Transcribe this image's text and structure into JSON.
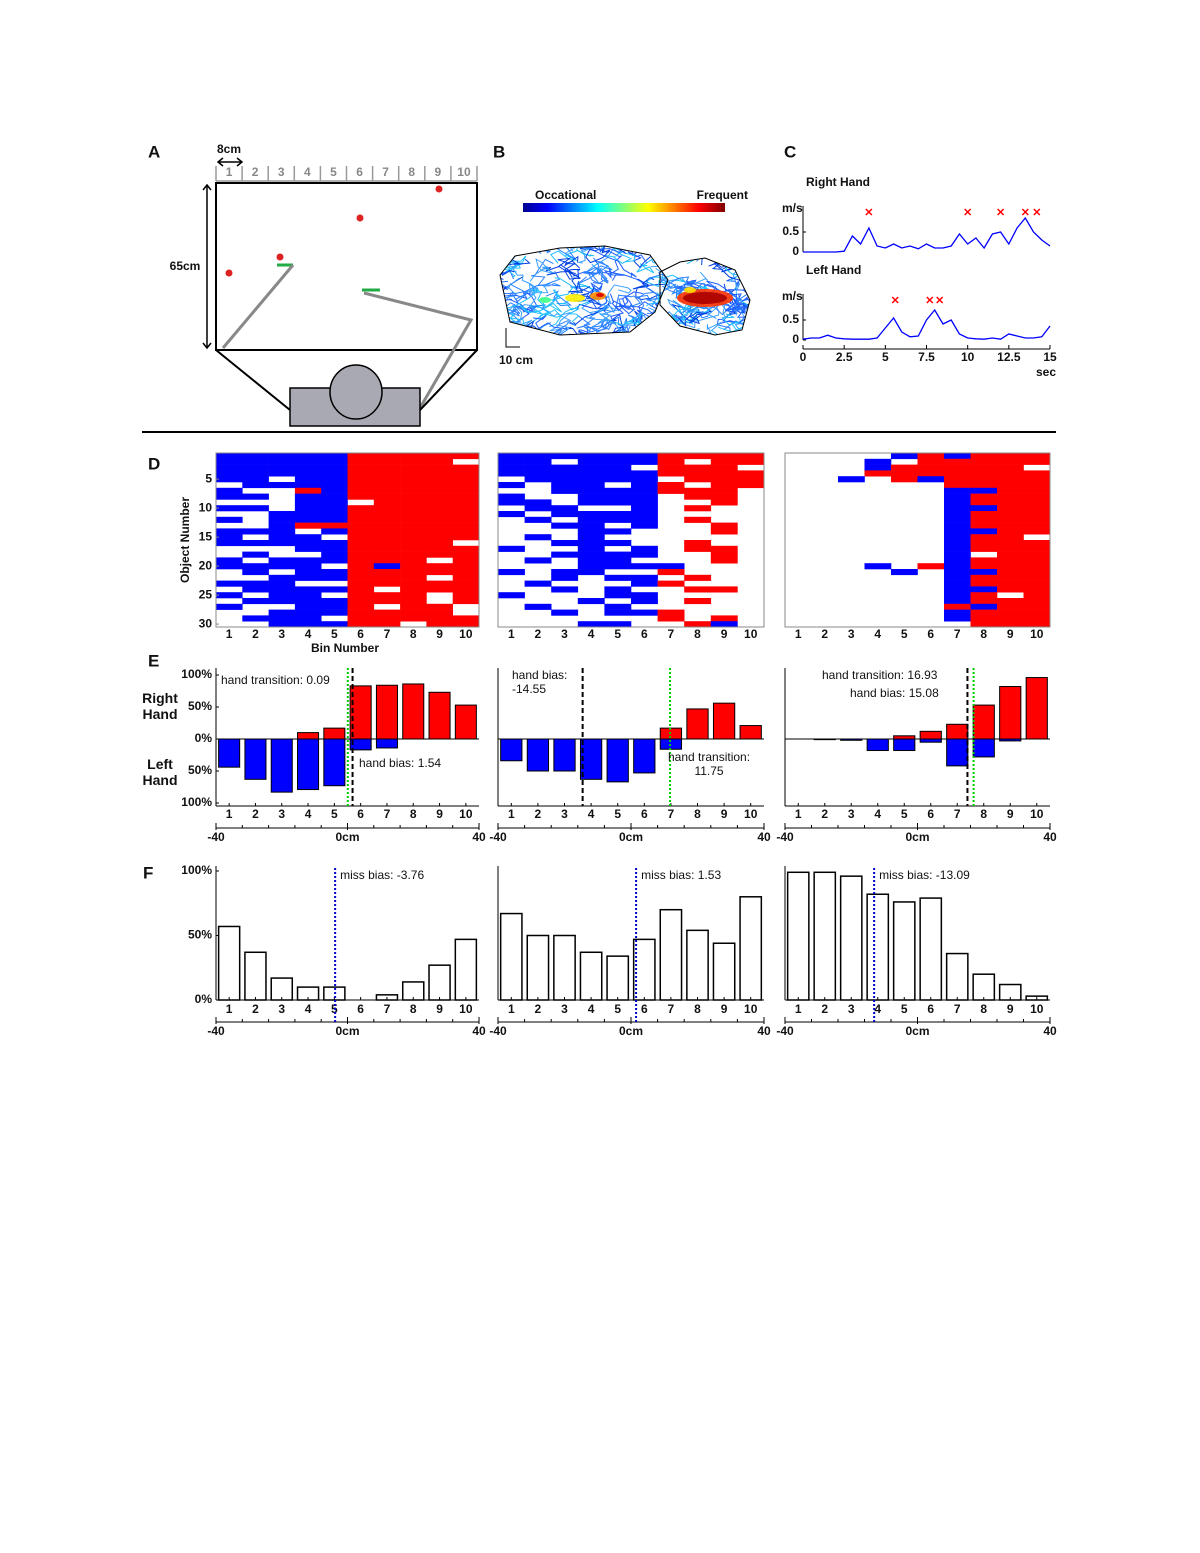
{
  "panel_a": {
    "letter": "A",
    "width_label": "8cm",
    "height_label": "65cm",
    "bins": [
      1,
      2,
      3,
      4,
      5,
      6,
      7,
      8,
      9,
      10
    ]
  },
  "panel_b": {
    "letter": "B",
    "colorbar_low": "Occational",
    "colorbar_high": "Frequent",
    "scale_label": "10 cm"
  },
  "chart_data": [
    {
      "type": "line",
      "panel": "C",
      "title": "Right Hand",
      "ylabel": "m/s",
      "color": "#0000ff",
      "x": [
        0,
        0.5,
        1,
        1.5,
        2,
        2.5,
        3,
        3.5,
        4,
        4.5,
        5,
        5.5,
        6,
        6.5,
        7,
        7.5,
        8,
        8.5,
        9,
        9.5,
        10,
        10.5,
        11,
        11.5,
        12,
        12.5,
        13,
        13.5,
        14,
        14.5,
        15
      ],
      "values": [
        0,
        0,
        0,
        0,
        0,
        0.02,
        0.4,
        0.2,
        0.6,
        0.15,
        0.1,
        0.2,
        0.1,
        0.15,
        0.08,
        0.2,
        0.1,
        0.1,
        0.15,
        0.45,
        0.2,
        0.35,
        0.1,
        0.45,
        0.5,
        0.2,
        0.6,
        0.85,
        0.5,
        0.3,
        0.15
      ],
      "markers_x": [
        4,
        10,
        12,
        13.5,
        14.2
      ],
      "marker_color": "#ff0000",
      "xlim": [
        0,
        15
      ],
      "ylim": [
        0,
        1
      ],
      "yticks": [
        0,
        0.5
      ]
    },
    {
      "type": "line",
      "title": "Left Hand",
      "ylabel": "m/s",
      "xlabel": "sec",
      "color": "#0000ff",
      "x": [
        0,
        0.5,
        1,
        1.5,
        2,
        2.5,
        3,
        3.5,
        4,
        4.5,
        5,
        5.5,
        6,
        6.5,
        7,
        7.5,
        8,
        8.5,
        9,
        9.5,
        10,
        10.5,
        11,
        11.5,
        12,
        12.5,
        13,
        13.5,
        14,
        14.5,
        15
      ],
      "values": [
        0.02,
        0.05,
        0.05,
        0.12,
        0.05,
        0.03,
        0.02,
        0.02,
        0.02,
        0.05,
        0.3,
        0.55,
        0.2,
        0.08,
        0.1,
        0.5,
        0.75,
        0.4,
        0.5,
        0.15,
        0.05,
        0.03,
        0.02,
        0.05,
        0.02,
        0.15,
        0.1,
        0.05,
        0.05,
        0.08,
        0.35
      ],
      "markers_x": [
        5.6,
        7.7,
        8.3
      ],
      "marker_color": "#ff0000",
      "xlim": [
        0,
        15
      ],
      "ylim": [
        0,
        1
      ],
      "yticks": [
        0,
        0.5
      ],
      "xticks": [
        0,
        2.5,
        5,
        7.5,
        10,
        12.5,
        15
      ]
    },
    {
      "type": "heatmap",
      "panel": "D",
      "ylabel": "Object Number",
      "xlabel": "Bin Number",
      "categories": [
        1,
        2,
        3,
        4,
        5,
        6,
        7,
        8,
        9,
        10
      ],
      "colors": {
        "B": "#0000ff",
        "R": "#ff0000"
      },
      "yticks": [
        5,
        10,
        15,
        20,
        25,
        30
      ],
      "rows": [
        "BBBBBRRRRR",
        "BBBBBRRRR.",
        "BBBBBRRRRR",
        "BBBBBRRRRR",
        "BB.BBRRRRR",
        ".BBBBRRRRR",
        "B..RBRRRRR",
        "BB.BBRRRRR",
        "...BB.RRRR",
        "BB.BBRRRRR",
        "..BBBRRRRR",
        "B.BBBRRRRR",
        "..BRRRRRRR",
        "BBB.BRRRRR",
        "B.BB.RRRRR",
        "BBBBBRRRR.",
        "...BBRRRRR",
        ".B..BRRRRR",
        "B.BBBRRR.R",
        "BBBB.RBRRR",
        ".B.BBRRRRR",
        "..BBBRRR.R",
        "BBB..RRRRR",
        ".BBBBR.RRR",
        "B.BB.RRR.R",
        ".BBBBRRR.R",
        "B..BBR.RR.",
        "..BBBRRRR.",
        ".BBB.RRRRR",
        "..BBBRR.RR"
      ]
    },
    {
      "type": "heatmap",
      "categories": [
        1,
        2,
        3,
        4,
        5,
        6,
        7,
        8,
        9,
        10
      ],
      "colors": {
        "B": "#0000ff",
        "R": "#ff0000"
      },
      "rows": [
        "BBBBBBRRRR",
        "BB.BBBR.RR",
        "BBBBB.RRR.",
        "BBBBBBRRRR",
        ".BBBBB.RRR",
        "B.BB.BR.RR",
        "..BBBBRRR.",
        "B..BBB.RR.",
        "BB.BBB..R.",
        ".BB..B.R..",
        "B.BBBB....",
        ".B.BBB.R..",
        "..BB.B..R.",
        "...BB...R.",
        ".B.B......",
        "..BBB..R..",
        "B..B.B.RR.",
        "..BBBB..R.",
        ".B.BB...R.",
        "...BBBB...",
        "B.BB..R...",
        "..B.BB.R..",
        ".B...BR...",
        "..B.B..RR.",
        "B...BB....",
        "...B.B.R..",
        ".B..B.....",
        "..B.BBR...",
        "......R.R.",
        "...BB..RB."
      ]
    },
    {
      "type": "heatmap",
      "categories": [
        1,
        2,
        3,
        4,
        5,
        6,
        7,
        8,
        9,
        10
      ],
      "colors": {
        "B": "#0000ff",
        "R": "#ff0000"
      },
      "rows": [
        "....BRBRRR",
        "...B.RRRRR",
        "...BRRRRR.",
        "...RRRRRRR",
        "..B.RBRRRR",
        "......RRRR",
        "......BBRR",
        "......BRRR",
        "......BRRR",
        "......BBRR",
        "......BRRR",
        "......BRRR",
        "......BRRR",
        "......BBRR",
        "......BRR.",
        "......BRRR",
        "......BRRR",
        "......B.RR",
        "......BRRR",
        "...B.RBRRR",
        "....B.BBRR",
        "......BRRR",
        "......BRRR",
        "......BBRR",
        "......BR.R",
        "......BRRR",
        "......RBRR",
        "......BRRR",
        "......BRRR",
        ".......RRR"
      ]
    },
    {
      "type": "diverging_bar",
      "panel": "E",
      "categories": [
        1,
        2,
        3,
        4,
        5,
        6,
        7,
        8,
        9,
        10
      ],
      "series": [
        {
          "name": "Right Hand",
          "color": "#ff0000",
          "direction": "up",
          "values": [
            0,
            0,
            0,
            10,
            17,
            83,
            84,
            86,
            73,
            53
          ]
        },
        {
          "name": "Left Hand",
          "color": "#0000ff",
          "direction": "down",
          "values": [
            44,
            63,
            83,
            79,
            73,
            17,
            14,
            0,
            0,
            0
          ]
        }
      ],
      "ylim": [
        -100,
        100
      ],
      "yticks": [
        {
          "value": 100,
          "label": "100%"
        },
        {
          "value": 50,
          "label": "50%"
        },
        {
          "value": 0,
          "label": "0%"
        },
        {
          "value": -50,
          "label": "50%"
        },
        {
          "value": -100,
          "label": "100%"
        }
      ],
      "cm_xlim": [
        -40,
        40
      ],
      "cm_xticks": [
        -40,
        {
          "value": 0,
          "label": "0cm"
        },
        40
      ],
      "hand_transition": {
        "value": 0.09,
        "label": "hand transition: 0.09",
        "color": "#00cc00"
      },
      "hand_bias": {
        "value": 1.54,
        "label": "hand bias: 1.54",
        "color": "#000000"
      }
    },
    {
      "type": "diverging_bar",
      "categories": [
        1,
        2,
        3,
        4,
        5,
        6,
        7,
        8,
        9,
        10
      ],
      "series": [
        {
          "color": "#ff0000",
          "direction": "up",
          "values": [
            0,
            0,
            0,
            0,
            0,
            0,
            17,
            47,
            56,
            21
          ]
        },
        {
          "color": "#0000ff",
          "direction": "down",
          "values": [
            34,
            50,
            50,
            63,
            67,
            53,
            16,
            0,
            0,
            0
          ]
        }
      ],
      "ylim": [
        -100,
        100
      ],
      "cm_xlim": [
        -40,
        40
      ],
      "cm_xticks": [
        -40,
        {
          "value": 0,
          "label": "0cm"
        },
        40
      ],
      "hand_transition": {
        "value": 11.75,
        "label": "hand transition:\n11.75",
        "color": "#00cc00"
      },
      "hand_bias": {
        "value": -14.55,
        "label": "hand bias:\n-14.55",
        "color": "#000000"
      }
    },
    {
      "type": "diverging_bar",
      "categories": [
        1,
        2,
        3,
        4,
        5,
        6,
        7,
        8,
        9,
        10
      ],
      "series": [
        {
          "color": "#ff0000",
          "direction": "up",
          "values": [
            0,
            0,
            0,
            0,
            5,
            12,
            23,
            53,
            82,
            96
          ]
        },
        {
          "color": "#0000ff",
          "direction": "down",
          "values": [
            0,
            1,
            2,
            18,
            18,
            5,
            42,
            28,
            3,
            0
          ]
        }
      ],
      "ylim": [
        -100,
        100
      ],
      "cm_xlim": [
        -40,
        40
      ],
      "cm_xticks": [
        -40,
        {
          "value": 0,
          "label": "0cm"
        },
        40
      ],
      "hand_transition": {
        "value": 16.93,
        "label": "hand transition: 16.93",
        "color": "#00cc00"
      },
      "hand_bias": {
        "value": 15.08,
        "label": "hand bias: 15.08",
        "color": "#000000"
      }
    },
    {
      "type": "bar",
      "panel": "F",
      "categories": [
        1,
        2,
        3,
        4,
        5,
        6,
        7,
        8,
        9,
        10
      ],
      "color": "#ffffff",
      "values": [
        57,
        37,
        17,
        10,
        10,
        0,
        4,
        14,
        27,
        47
      ],
      "ylim": [
        0,
        100
      ],
      "yticks": [
        {
          "value": 100,
          "label": "100%"
        },
        {
          "value": 50,
          "label": "50%"
        },
        {
          "value": 0,
          "label": "0%"
        }
      ],
      "cm_xlim": [
        -40,
        40
      ],
      "cm_xticks": [
        -40,
        {
          "value": 0,
          "label": "0cm"
        },
        40
      ],
      "miss_bias": {
        "value": -3.76,
        "label": "miss bias: -3.76",
        "color": "#0000cc"
      }
    },
    {
      "type": "bar",
      "categories": [
        1,
        2,
        3,
        4,
        5,
        6,
        7,
        8,
        9,
        10
      ],
      "color": "#ffffff",
      "values": [
        67,
        50,
        50,
        37,
        34,
        47,
        70,
        54,
        44,
        80
      ],
      "ylim": [
        0,
        100
      ],
      "cm_xlim": [
        -40,
        40
      ],
      "cm_xticks": [
        -40,
        {
          "value": 0,
          "label": "0cm"
        },
        40
      ],
      "miss_bias": {
        "value": 1.53,
        "label": "miss bias: 1.53",
        "color": "#0000cc"
      }
    },
    {
      "type": "bar",
      "categories": [
        1,
        2,
        3,
        4,
        5,
        6,
        7,
        8,
        9,
        10
      ],
      "color": "#ffffff",
      "values": [
        99,
        99,
        96,
        82,
        76,
        79,
        36,
        20,
        12,
        3
      ],
      "ylim": [
        0,
        100
      ],
      "cm_xlim": [
        -40,
        40
      ],
      "cm_xticks": [
        -40,
        {
          "value": 0,
          "label": "0cm"
        },
        40
      ],
      "miss_bias": {
        "value": -13.09,
        "label": "miss bias: -13.09",
        "color": "#0000cc"
      }
    }
  ]
}
